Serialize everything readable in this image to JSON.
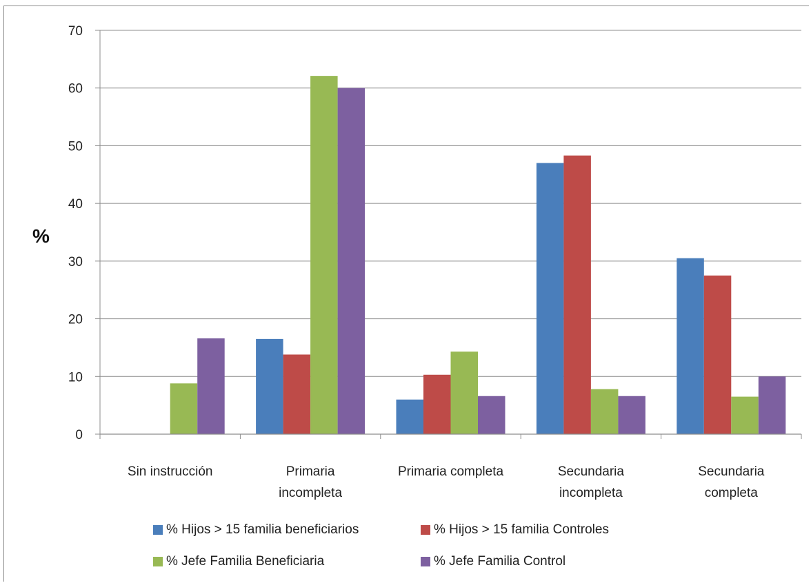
{
  "chart_data": {
    "type": "bar",
    "ylabel": "%",
    "xlabel": "",
    "title": "",
    "ylim": [
      0,
      70
    ],
    "yticks": [
      0,
      10,
      20,
      30,
      40,
      50,
      60,
      70
    ],
    "grid": true,
    "legend_position": "bottom",
    "categories": [
      [
        "Sin instrucción"
      ],
      [
        "Primaria",
        "incompleta"
      ],
      [
        "Primaria completa"
      ],
      [
        "Secundaria",
        "incompleta"
      ],
      [
        "Secundaria",
        "completa"
      ]
    ],
    "series": [
      {
        "name": "% Hijos > 15 familia beneficiarios",
        "color": "#4a7ebb",
        "values": [
          0,
          16.5,
          6,
          47,
          30.5
        ]
      },
      {
        "name": "% Hijos > 15 familia Controles",
        "color": "#be4b48",
        "values": [
          0,
          13.8,
          10.3,
          48.3,
          27.5
        ]
      },
      {
        "name": "% Jefe Familia Beneficiaria",
        "color": "#98b954",
        "values": [
          8.8,
          62.1,
          14.3,
          7.8,
          6.5
        ]
      },
      {
        "name": "% Jefe Familia Control",
        "color": "#7d60a0",
        "values": [
          16.6,
          60,
          6.6,
          6.6,
          10
        ]
      }
    ]
  }
}
